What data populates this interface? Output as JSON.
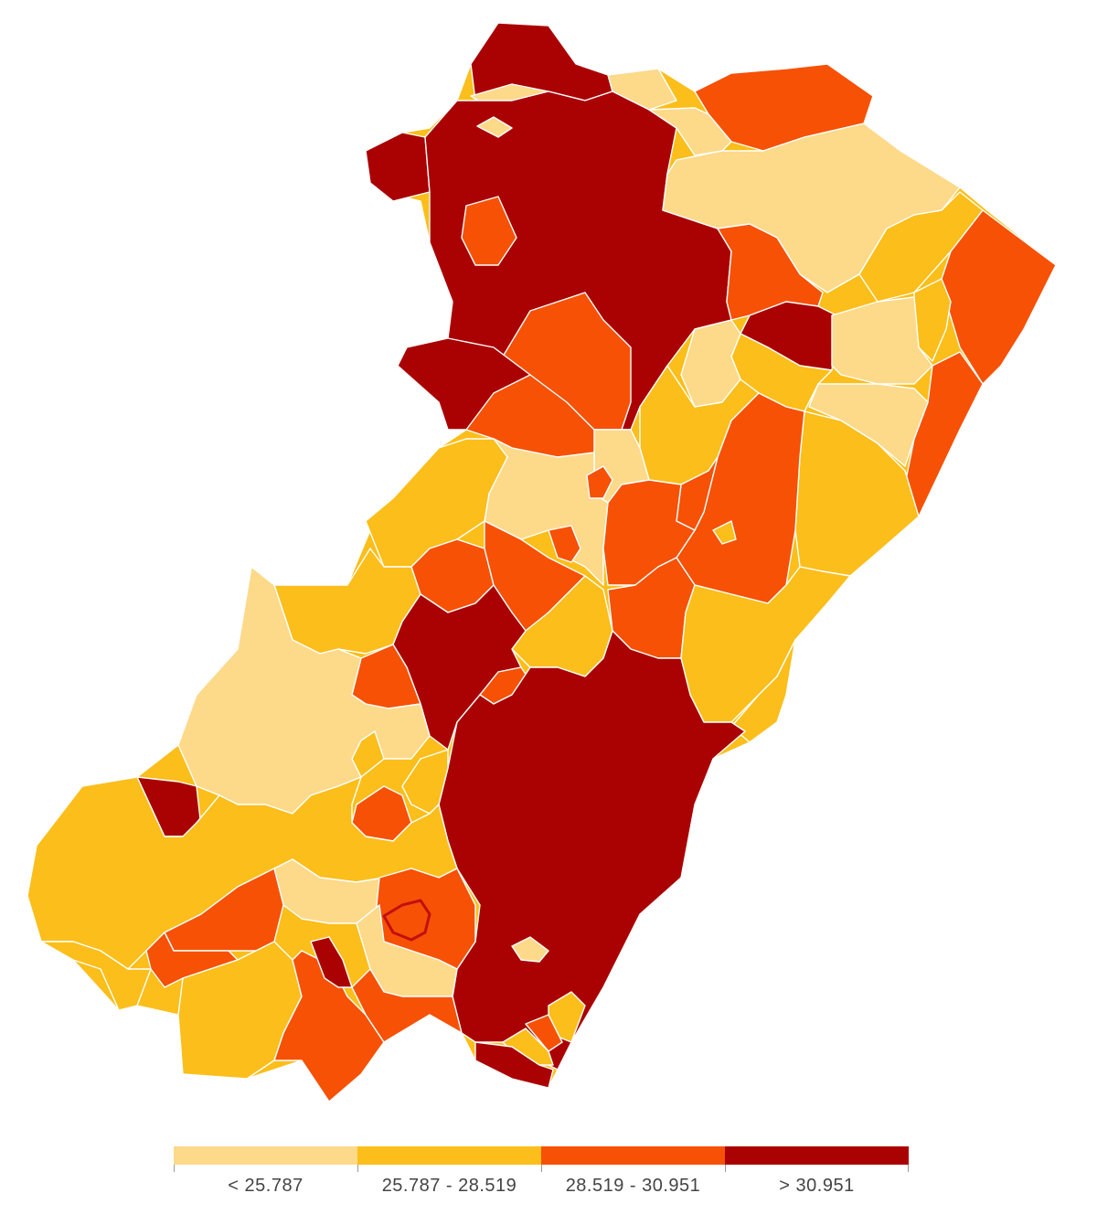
{
  "colors": {
    "c1": "#fdd98a",
    "c2": "#fbbe1a",
    "c3": "#f65105",
    "c4": "#aa0202",
    "border": "#ffffff"
  },
  "legend": {
    "classes": [
      {
        "label": "< 25.787",
        "color": "#fdd98a"
      },
      {
        "label": "25.787 - 28.519",
        "color": "#fbbe1a"
      },
      {
        "label": "28.519 - 30.951",
        "color": "#f65105"
      },
      {
        "label": "> 30.951",
        "color": "#aa0202"
      }
    ]
  }
}
